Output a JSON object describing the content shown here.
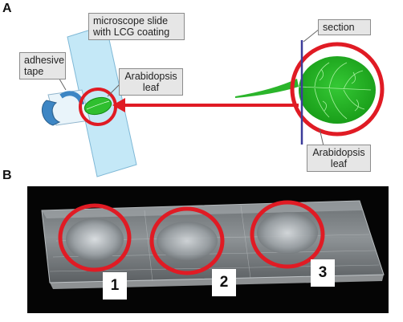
{
  "panel_a": {
    "letter": "A",
    "labels": {
      "slide": [
        "microscope slide",
        "with LCG coating"
      ],
      "tape": [
        "adhesive",
        "tape"
      ],
      "leaf_small": [
        "Arabidopsis",
        "leaf"
      ],
      "section": "section",
      "leaf_large": [
        "Arabidopsis",
        "leaf"
      ]
    },
    "colors": {
      "slide": "#bfe6f6",
      "leaf": "#2fbf2f",
      "circle": "#e01b24",
      "section_line": "#4040a0",
      "tape": "#4a8fc8"
    }
  },
  "panel_b": {
    "letter": "B",
    "numbers": [
      "1",
      "2",
      "3"
    ],
    "colors": {
      "background": "#050505",
      "circle": "#e01b24"
    }
  }
}
